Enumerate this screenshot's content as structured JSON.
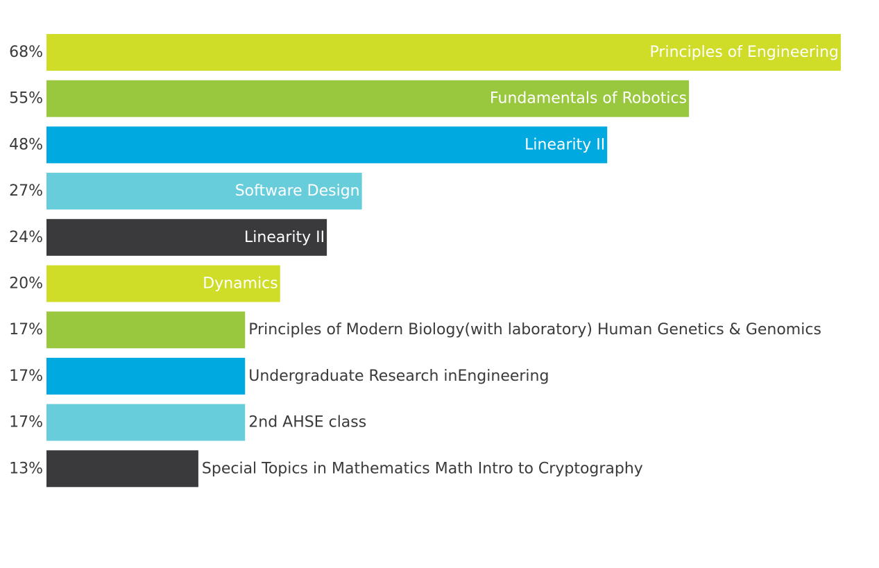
{
  "chart_data": {
    "type": "bar",
    "orientation": "horizontal",
    "categories": [
      "Principles of Engineering",
      "Fundamentals of Robotics",
      "Linearity II",
      "Software Design",
      "Linearity II",
      "Dynamics",
      "Principles of Modern Biology(with laboratory) Human Genetics & Genomics",
      "Undergraduate Research inEngineering",
      "2nd AHSE class",
      "Special Topics in Mathematics Math Intro to Cryptography"
    ],
    "values": [
      68,
      55,
      48,
      27,
      24,
      20,
      17,
      17,
      17,
      13
    ],
    "value_labels": [
      "68%",
      "55%",
      "48%",
      "27%",
      "24%",
      "20%",
      "17%",
      "17%",
      "17%",
      "13%"
    ],
    "label_inside": [
      true,
      true,
      true,
      true,
      true,
      true,
      false,
      false,
      false,
      false
    ],
    "bar_colors": [
      "#d0dd28",
      "#99c73d",
      "#00a9e0",
      "#67cddb",
      "#3a3a3c",
      "#d0dd28",
      "#99c73d",
      "#00a9e0",
      "#67cddb",
      "#3a3a3c"
    ],
    "xlim": [
      0,
      68
    ],
    "grid": false,
    "legend": "none"
  },
  "colors": {
    "text_dark": "#3a3a3c",
    "text_light": "#ffffff",
    "background": "#ffffff"
  }
}
